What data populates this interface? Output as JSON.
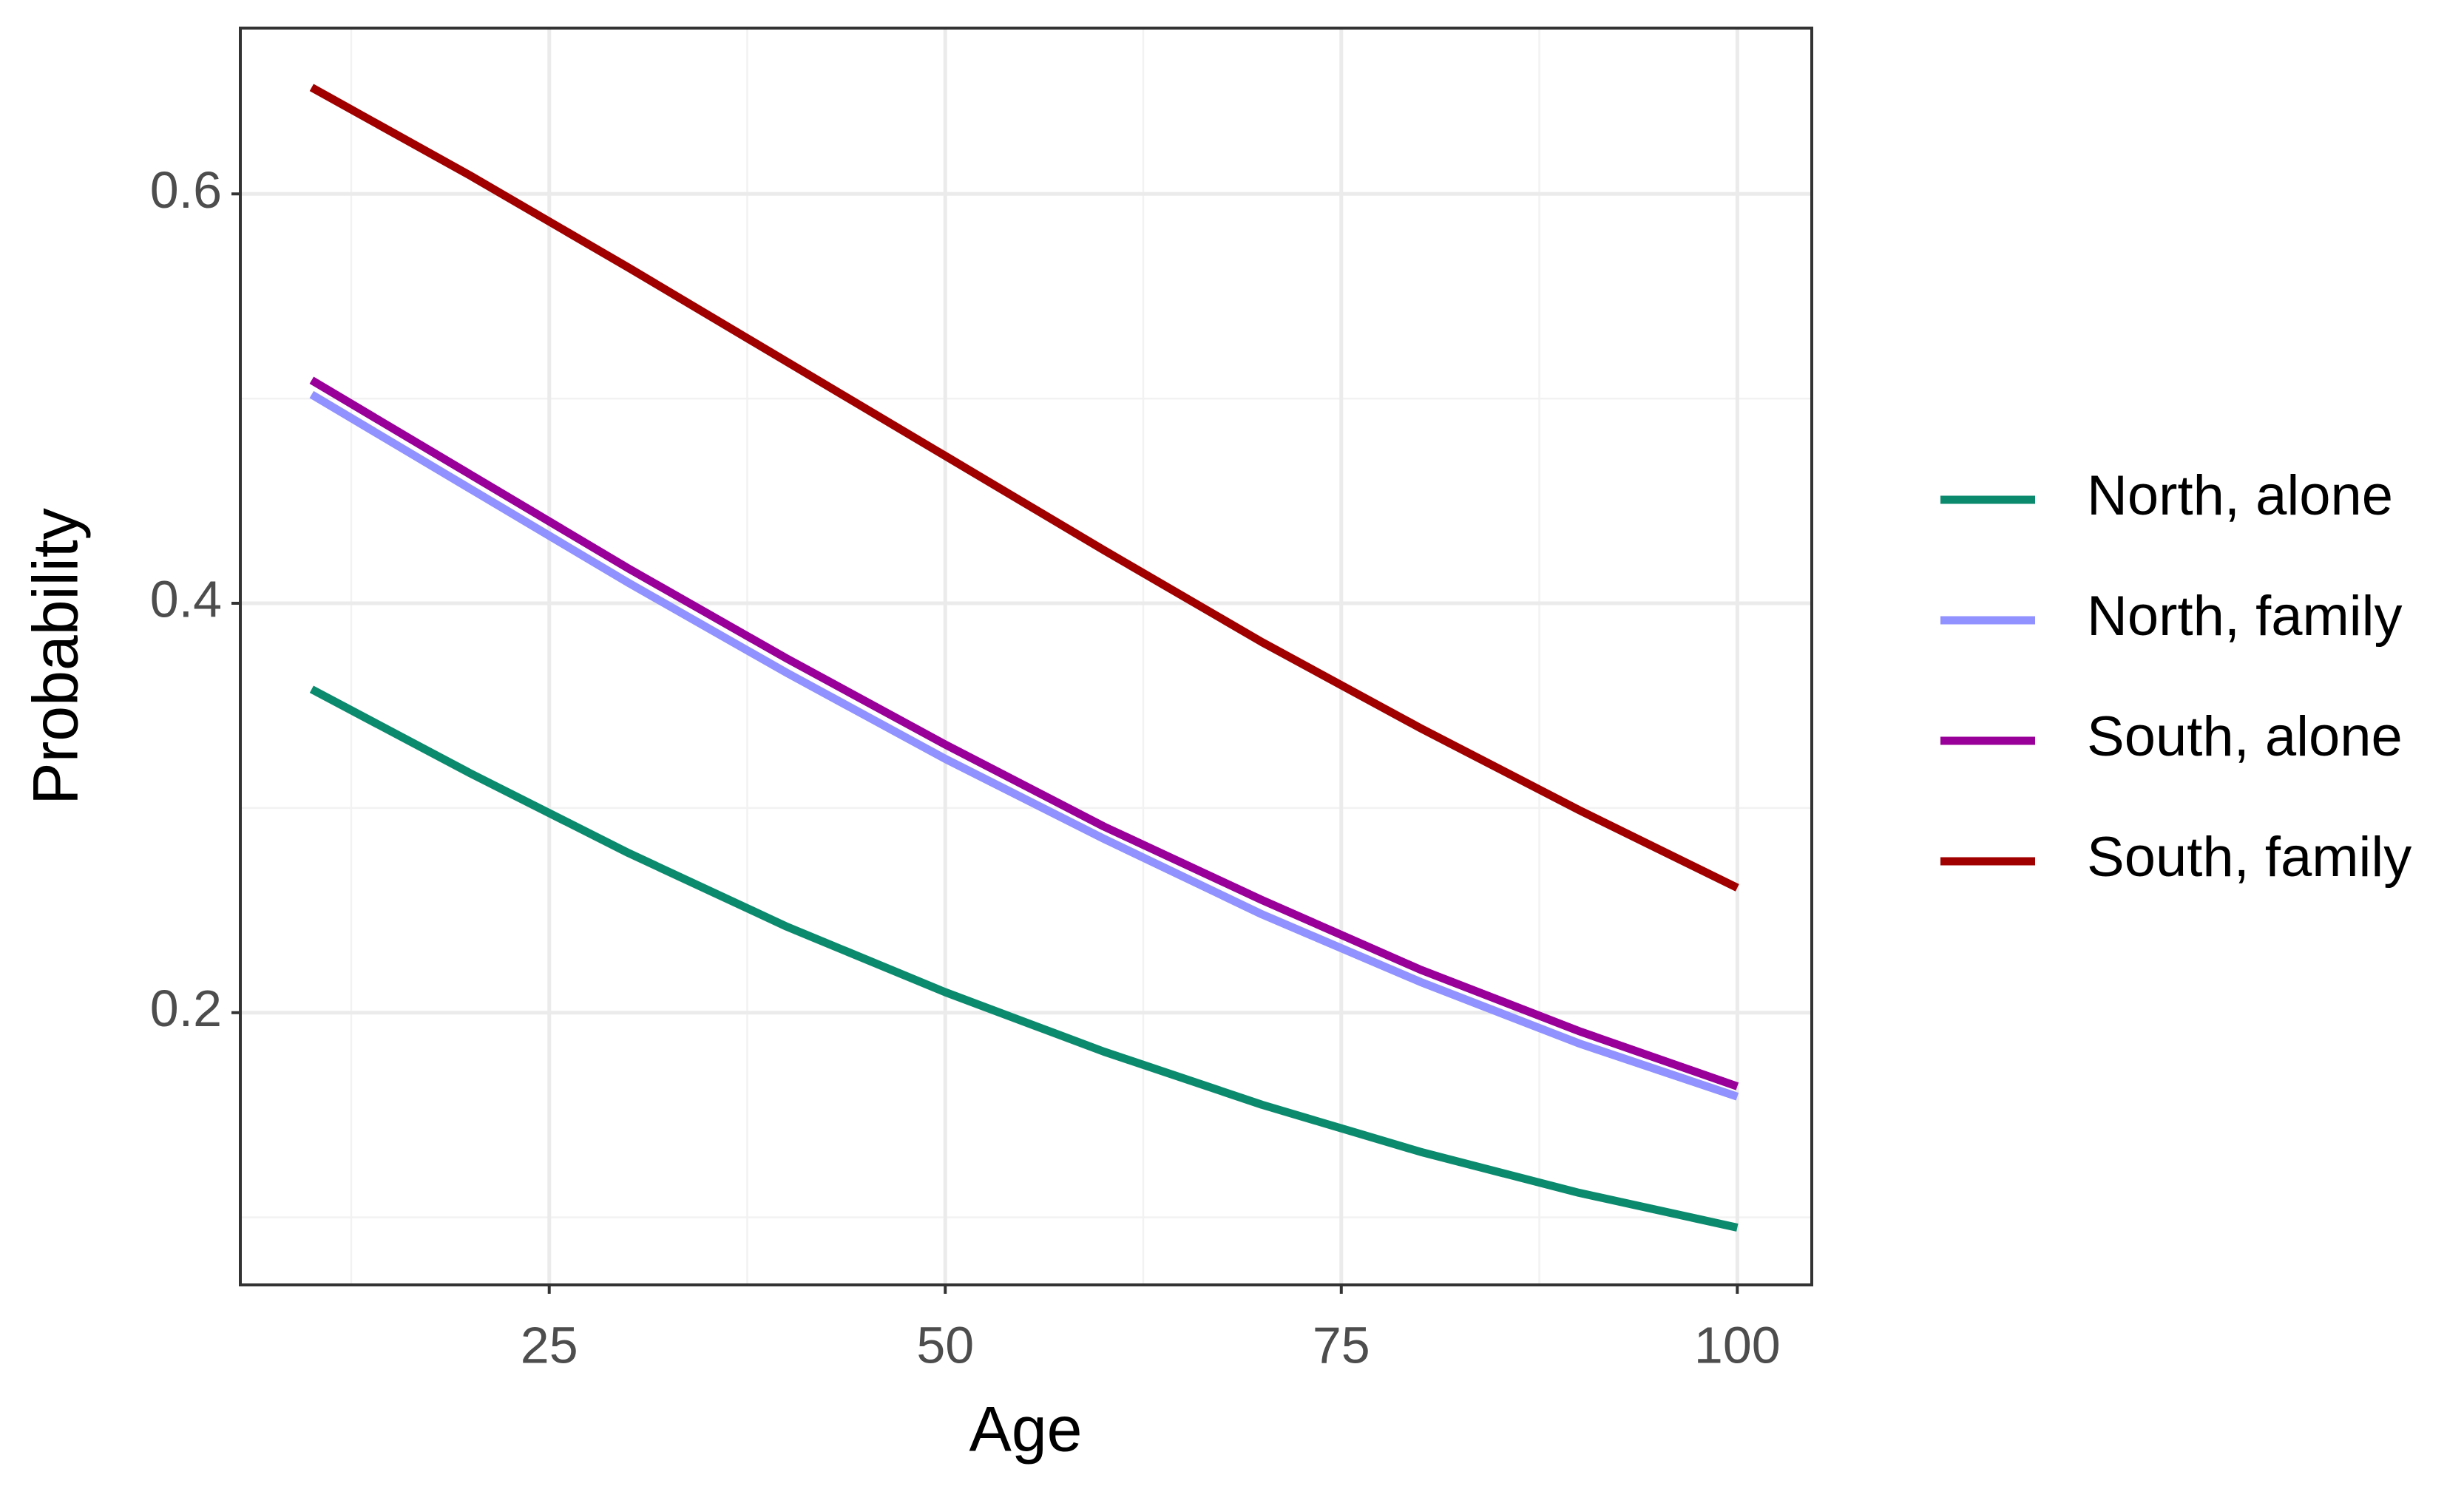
{
  "chart_data": {
    "type": "line",
    "x_label": "Age",
    "y_label": "Probability",
    "x": [
      10,
      20,
      30,
      40,
      50,
      60,
      70,
      80,
      90,
      100
    ],
    "series": [
      {
        "name": "North, alone",
        "color": "#0b8a6e",
        "values": [
          0.358,
          0.317,
          0.278,
          0.242,
          0.21,
          0.181,
          0.155,
          0.132,
          0.112,
          0.095
        ]
      },
      {
        "name": "North, family",
        "color": "#9191ff",
        "values": [
          0.502,
          0.456,
          0.41,
          0.366,
          0.324,
          0.285,
          0.248,
          0.215,
          0.185,
          0.159
        ]
      },
      {
        "name": "South, alone",
        "color": "#990099",
        "values": [
          0.509,
          0.463,
          0.417,
          0.373,
          0.331,
          0.291,
          0.255,
          0.221,
          0.191,
          0.164
        ]
      },
      {
        "name": "South, family",
        "color": "#a00000",
        "values": [
          0.652,
          0.609,
          0.564,
          0.518,
          0.472,
          0.426,
          0.381,
          0.339,
          0.299,
          0.261
        ]
      }
    ],
    "xlim": [
      5.5,
      104.7
    ],
    "ylim": [
      0.067,
      0.681
    ],
    "xticks": [
      25,
      50,
      75,
      100
    ],
    "yticks": [
      0.2,
      0.4,
      0.6
    ],
    "minor_xticks": [
      12.5,
      37.5,
      62.5,
      87.5
    ],
    "minor_yticks": [
      0.1,
      0.3,
      0.5
    ],
    "grid": true,
    "legend_position": "right"
  }
}
